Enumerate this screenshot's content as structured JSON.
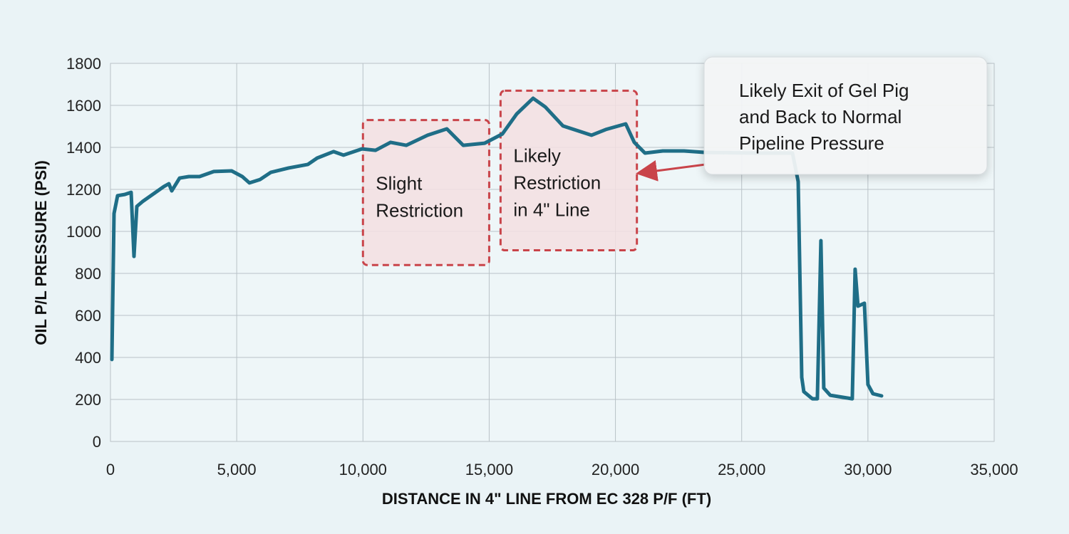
{
  "chart_data": {
    "type": "line",
    "xlabel": "DISTANCE IN 4\" LINE FROM EC 328 P/F (FT)",
    "ylabel": "OIL P/L PRESSURE (PSI)",
    "xlim": [
      0,
      35000
    ],
    "ylim": [
      0,
      1800
    ],
    "xticks": [
      "0",
      "5,000",
      "10,000",
      "15,000",
      "20,000",
      "25,000",
      "30,000",
      "35,000"
    ],
    "yticks": [
      "0",
      "200",
      "400",
      "600",
      "800",
      "1000",
      "1200",
      "1400",
      "1600",
      "1800"
    ],
    "grid": true,
    "series": [
      {
        "name": "Oil P/L Pressure",
        "color": "#1f6e87",
        "x": [
          56,
          141,
          282,
          564,
          818,
          931,
          1044,
          1270,
          2117,
          2315,
          2428,
          2738,
          3105,
          3528,
          4093,
          4798,
          5222,
          5505,
          5928,
          6352,
          7057,
          7819,
          8186,
          8835,
          9230,
          9964,
          10500,
          11093,
          11714,
          12560,
          13322,
          13971,
          14818,
          15524,
          16088,
          16737,
          17217,
          17922,
          19051,
          19616,
          20406,
          20745,
          21168,
          21874,
          22720,
          23567,
          25543,
          27011,
          27237,
          27378,
          27462,
          27801,
          27998,
          28139,
          28252,
          28506,
          29381,
          29494,
          29607,
          29861,
          30002,
          30200,
          30539
        ],
        "y": [
          390,
          1085,
          1170,
          1176,
          1186,
          881,
          1119,
          1142,
          1214,
          1227,
          1193,
          1254,
          1261,
          1261,
          1285,
          1288,
          1261,
          1231,
          1247,
          1281,
          1302,
          1319,
          1349,
          1380,
          1363,
          1393,
          1386,
          1424,
          1410,
          1458,
          1488,
          1410,
          1420,
          1464,
          1559,
          1634,
          1593,
          1502,
          1458,
          1485,
          1512,
          1424,
          1373,
          1383,
          1383,
          1376,
          1373,
          1373,
          1237,
          305,
          237,
          203,
          203,
          956,
          254,
          220,
          203,
          820,
          644,
          658,
          271,
          227,
          217
        ]
      }
    ],
    "annotations": [
      {
        "id": "slight",
        "lines": [
          "Slight",
          "Restriction"
        ],
        "x_range": [
          10000,
          15000
        ],
        "y_range": [
          840,
          1530
        ]
      },
      {
        "id": "likely",
        "lines": [
          "Likely",
          "Restriction",
          "in 4\" Line"
        ],
        "x_range": [
          15450,
          20850
        ],
        "y_range": [
          910,
          1670
        ]
      },
      {
        "id": "exit",
        "lines": [
          "Likely Exit of Gel Pig",
          "and Back to Normal",
          "Pipeline Pressure"
        ]
      }
    ],
    "colors": {
      "line": "#1f6e87",
      "box_border": "#c9444a",
      "box_fill": "#f3dfe2",
      "arrow": "#c9444a",
      "grid": "#b9c2c7"
    }
  }
}
